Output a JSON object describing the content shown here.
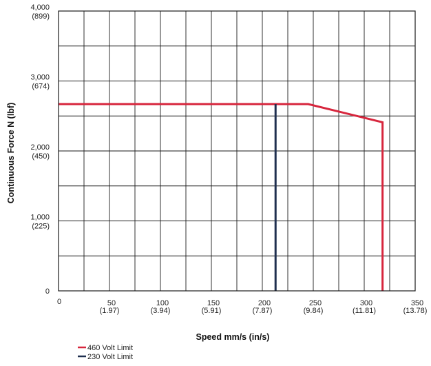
{
  "chart_data": {
    "type": "line",
    "xlabel": "Speed mm/s (in/s)",
    "ylabel": "Continuous Force N (lbf)",
    "xlim": [
      0,
      350
    ],
    "ylim": [
      0,
      4000
    ],
    "x_minor_step": 25,
    "y_minor_step": 500,
    "grid": true,
    "x_ticks": [
      {
        "value": 0,
        "label": "0",
        "sub": ""
      },
      {
        "value": 50,
        "label": "50",
        "sub": "(1.97)"
      },
      {
        "value": 100,
        "label": "100",
        "sub": "(3.94)"
      },
      {
        "value": 150,
        "label": "150",
        "sub": "(5.91)"
      },
      {
        "value": 200,
        "label": "200",
        "sub": "(7.87)"
      },
      {
        "value": 250,
        "label": "250",
        "sub": "(9.84)"
      },
      {
        "value": 300,
        "label": "300",
        "sub": "(11.81)"
      },
      {
        "value": 350,
        "label": "350",
        "sub": "(13.78)"
      }
    ],
    "y_ticks": [
      {
        "value": 0,
        "label": "0",
        "sub": ""
      },
      {
        "value": 1000,
        "label": "1,000",
        "sub": "(225)"
      },
      {
        "value": 2000,
        "label": "2,000",
        "sub": "(450)"
      },
      {
        "value": 3000,
        "label": "3,000",
        "sub": "(674)"
      },
      {
        "value": 4000,
        "label": "4,000",
        "sub": "(899)"
      }
    ],
    "series": [
      {
        "name": "460 Volt Limit",
        "color": "#d7263d",
        "points": [
          [
            0,
            2670
          ],
          [
            245,
            2670
          ],
          [
            318,
            2410
          ],
          [
            318,
            0
          ]
        ]
      },
      {
        "name": "230 Volt Limit",
        "color": "#1f2f4f",
        "points": [
          [
            213,
            2670
          ],
          [
            213,
            0
          ]
        ]
      }
    ],
    "legend_position": "bottom-left"
  }
}
